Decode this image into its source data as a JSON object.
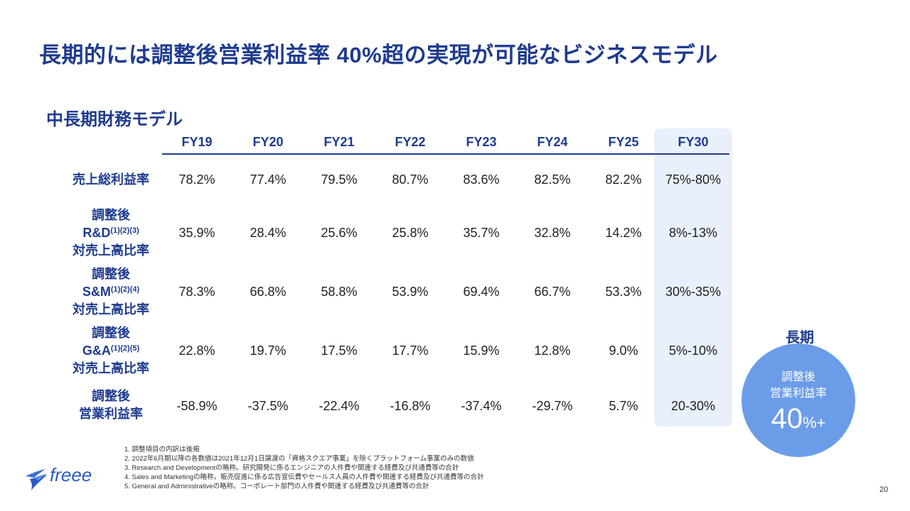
{
  "title": "長期的には調整後営業利益率 40%超の実現が可能なビジネスモデル",
  "subtitle": "中長期財務モデル",
  "columns": [
    "FY19",
    "FY20",
    "FY21",
    "FY22",
    "FY23",
    "FY24",
    "FY25",
    "FY30"
  ],
  "rows": [
    {
      "label_lines": [
        "売上総利益率"
      ],
      "values": [
        "78.2%",
        "77.4%",
        "79.5%",
        "80.7%",
        "83.6%",
        "82.5%",
        "82.2%",
        "75%-80%"
      ]
    },
    {
      "label_lines": [
        "調整後",
        "R&D",
        "対売上高比率"
      ],
      "label_note": "(1)(2)(3)",
      "values": [
        "35.9%",
        "28.4%",
        "25.6%",
        "25.8%",
        "35.7%",
        "32.8%",
        "14.2%",
        "8%-13%"
      ]
    },
    {
      "label_lines": [
        "調整後",
        "S&M",
        "対売上高比率"
      ],
      "label_note": "(1)(2)(4)",
      "values": [
        "78.3%",
        "66.8%",
        "58.8%",
        "53.9%",
        "69.4%",
        "66.7%",
        "53.3%",
        "30%-35%"
      ]
    },
    {
      "label_lines": [
        "調整後",
        "G&A",
        "対売上高比率"
      ],
      "label_note": "(1)(2)(5)",
      "values": [
        "22.8%",
        "19.7%",
        "17.5%",
        "17.7%",
        "15.9%",
        "12.8%",
        "9.0%",
        "5%-10%"
      ]
    },
    {
      "label_lines": [
        "調整後",
        "営業利益率"
      ],
      "values": [
        "-58.9%",
        "-37.5%",
        "-22.4%",
        "-16.8%",
        "-37.4%",
        "-29.7%",
        "5.7%",
        "20-30%"
      ]
    }
  ],
  "long_term": {
    "label": "長期",
    "line1": "調整後",
    "line2": "営業利益率",
    "value": "40",
    "suffix": "%+"
  },
  "notes": [
    "1.  調整項目の内訳は後掲",
    "2.  2022年6月期以降の各数値は2021年12月1日譲渡の「資格スクエア事業」を除くプラットフォーム事業のみの数値",
    "3.  Research and Developmentの略称。研究開発に係るエンジニアの人件費や関連する経費及び共通費等の合計",
    "4.  Sales and Marketingの略称。販売促進に係る広告宣伝費やセールス人員の人件費や関連する経費及び共通費等の合計",
    "5.  General and Administrativeの略称。コーポレート部門の人件費や関連する経費及び共通費等の合計"
  ],
  "logo_text": "freee",
  "page_number": "20",
  "colors": {
    "brand_blue": "#1f3b8f",
    "highlight_bg": "#e8f0fb",
    "circle": "#6b9ce8"
  }
}
